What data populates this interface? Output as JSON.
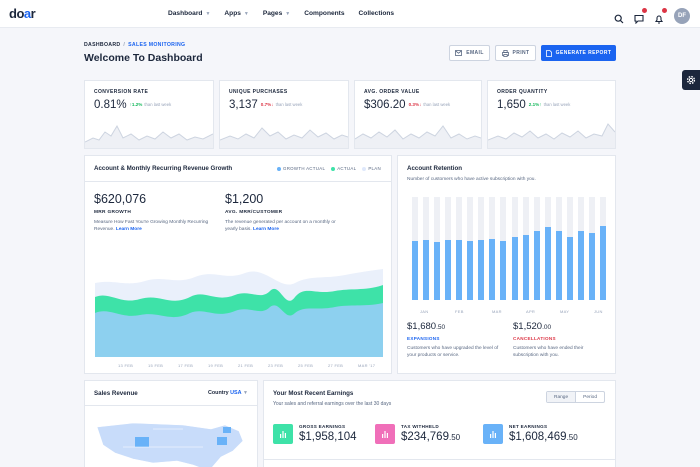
{
  "brand": {
    "logo_pre": "do",
    "logo_accent": "a",
    "logo_post": "r"
  },
  "nav": [
    {
      "label": "Dashboard",
      "caret": true
    },
    {
      "label": "Apps",
      "caret": true
    },
    {
      "label": "Pages",
      "caret": true
    },
    {
      "label": "Components",
      "caret": false
    },
    {
      "label": "Collections",
      "caret": false
    }
  ],
  "user": {
    "initials": "DF"
  },
  "breadcrumb": {
    "root": "DASHBOARD",
    "current": "SALES MONITORING"
  },
  "page_title": "Welcome To Dashboard",
  "actions": {
    "email": "EMAIL",
    "print": "PRINT",
    "generate": "GENERATE REPORT"
  },
  "stats": [
    {
      "label": "CONVERSION RATE",
      "value": "0.81%",
      "change": "1.2%",
      "direction": "up",
      "since": "than last week"
    },
    {
      "label": "UNIQUE PURCHASES",
      "value": "3,137",
      "change": "0.7%",
      "direction": "down",
      "since": "than last week"
    },
    {
      "label": "AVG. ORDER VALUE",
      "value": "$306.20",
      "change": "0.3%",
      "direction": "down",
      "since": "than last week"
    },
    {
      "label": "ORDER QUANTITY",
      "value": "1,650",
      "change": "2.1%",
      "direction": "up",
      "since": "than last week"
    }
  ],
  "mrr": {
    "title": "Account & Monthly Recurring Revenue Growth",
    "legend": [
      {
        "label": "GROWTH ACTUAL",
        "color": "#69b2f8"
      },
      {
        "label": "ACTUAL",
        "color": "#3ee2a8"
      },
      {
        "label": "PLAN",
        "color": "#dfe8fb"
      }
    ],
    "growth_value": "$620,076",
    "growth_label": "MRR GROWTH",
    "growth_desc": "Measure How Fast You're Growing Monthly Recurring Revenue.",
    "growth_link": "Learn More",
    "avg_value": "$1,200",
    "avg_label": "AVG. MRR/CUSTOMER",
    "avg_desc": "The revenue generated per account on a monthly or yearly basis.",
    "avg_link": "Learn More",
    "x_labels": [
      "13 FEB",
      "15 FEB",
      "17 FEB",
      "19 FEB",
      "21 FEB",
      "23 FEB",
      "25 FEB",
      "27 FEB",
      "MAR '17"
    ]
  },
  "retention": {
    "title": "Account Retention",
    "subtitle": "Number of customers who have active subscription with you.",
    "months": [
      "JAN",
      "FEB",
      "MAR",
      "APR",
      "MAY",
      "JUN"
    ],
    "values": [
      57,
      58,
      56,
      58,
      58,
      57,
      58,
      59,
      57,
      61,
      63,
      67,
      71,
      67,
      61,
      67,
      65,
      72
    ],
    "max": 100,
    "bar_color": "#69b2f8",
    "track_color": "#eef0f5",
    "expansions_value": "$1,680",
    "expansions_cents": ".50",
    "expansions_label": "EXPANSIONS",
    "expansions_color": "#1b64f0",
    "expansions_desc": "Customers who have upgraded the level of your products or service.",
    "cancellations_value": "$1,520",
    "cancellations_cents": ".00",
    "cancellations_label": "CANCELLATIONS",
    "cancellations_color": "#dc3545",
    "cancellations_desc": "Customers who have ended their subscription with you."
  },
  "sales_revenue": {
    "title": "Sales Revenue",
    "country_label": "Country",
    "country_value": "USA"
  },
  "earnings": {
    "title": "Your Most Recent Earnings",
    "subtitle": "Your sales and referral earnings over the last 30 days",
    "toggle": [
      "Range",
      "Period"
    ],
    "items": [
      {
        "label": "GROSS EARNINGS",
        "value": "$1,958,104",
        "cents": "",
        "color": "#3ee2a8"
      },
      {
        "label": "TAX WITHHELD",
        "value": "$234,769",
        "cents": ".50",
        "color": "#f06fb9"
      },
      {
        "label": "NET EARNINGS",
        "value": "$1,608,469",
        "cents": ".50",
        "color": "#69b2f8"
      }
    ]
  }
}
